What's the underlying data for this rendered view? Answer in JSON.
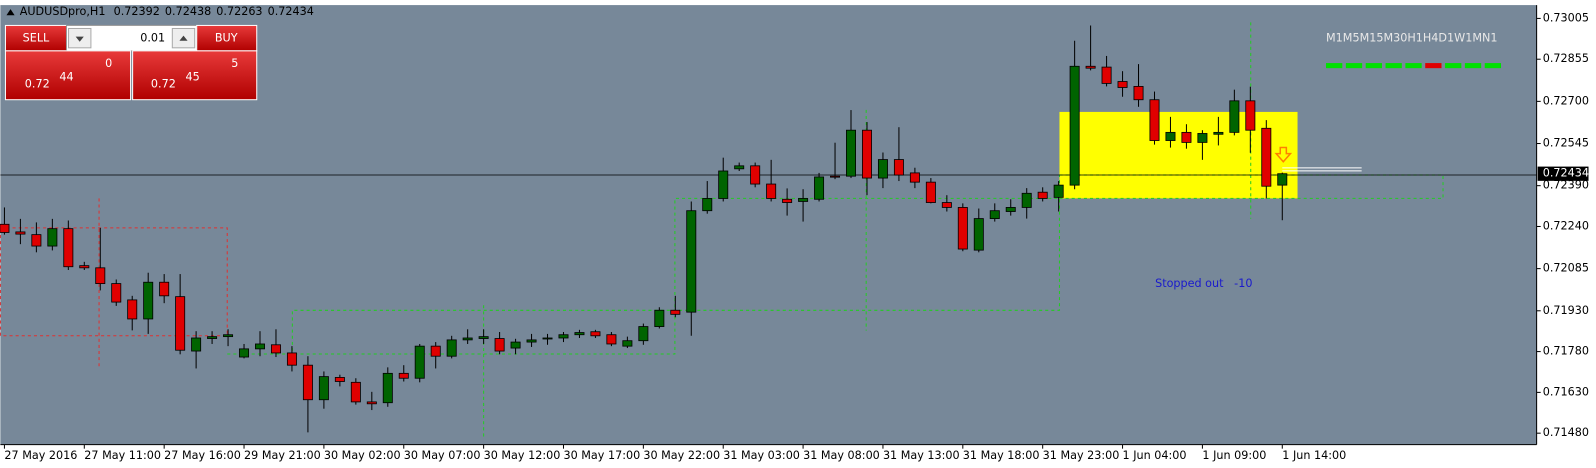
{
  "header": {
    "symbol": "AUDUSDpro,H1"
  },
  "trade_panel": {
    "sell_label": "SELL",
    "buy_label": "BUY",
    "lot": 0.01,
    "bid": {
      "prefix": 0.72,
      "pips": 44,
      "fraction": 0
    },
    "ask": {
      "prefix": 0.72,
      "pips": 45,
      "fraction": 5
    }
  },
  "timeframes": {
    "labels": [
      "M1",
      "M5",
      "M15",
      "M30",
      "H1",
      "H4",
      "D1",
      "W1",
      "MN1"
    ],
    "colors": [
      "#00e000",
      "#00e000",
      "#00e000",
      "#00e000",
      "#00e000",
      "#e00000",
      "#00e000",
      "#00e000",
      "#00e000"
    ]
  },
  "annotation": {
    "text": "Stopped out   -10",
    "color": "#1a1acd"
  },
  "chart_data": {
    "type": "candlestick",
    "up_color": "#006400",
    "down_color": "#e00000",
    "categories": [
      "27 May 2016",
      null,
      null,
      null,
      null,
      "27 May 11:00",
      null,
      null,
      null,
      null,
      "27 May 16:00",
      null,
      null,
      null,
      null,
      "29 May 21:00",
      null,
      null,
      null,
      null,
      "30 May 02:00",
      null,
      null,
      null,
      null,
      "30 May 07:00",
      null,
      null,
      null,
      null,
      "30 May 12:00",
      null,
      null,
      null,
      null,
      "30 May 17:00",
      null,
      null,
      null,
      null,
      "30 May 22:00",
      null,
      null,
      null,
      null,
      "31 May 03:00",
      null,
      null,
      null,
      null,
      "31 May 08:00",
      null,
      null,
      null,
      null,
      "31 May 13:00",
      null,
      null,
      null,
      null,
      "31 May 18:00",
      null,
      null,
      null,
      null,
      "31 May 23:00",
      null,
      null,
      null,
      null,
      "1 Jun 04:00",
      null,
      null,
      null,
      null,
      "1 Jun 09:00",
      null,
      null,
      null,
      null,
      "1 Jun 14:00"
    ],
    "open": [
      0.72248,
      0.7222,
      0.7221,
      0.72168,
      0.72232,
      0.72096,
      0.72088,
      0.7203,
      0.7197,
      0.719,
      0.72035,
      0.71982,
      0.71782,
      0.71828,
      0.71835,
      0.7176,
      0.7179,
      0.71805,
      0.71775,
      0.7173,
      0.71603,
      0.71685,
      0.71667,
      0.71595,
      0.71592,
      0.717,
      0.71682,
      0.718,
      0.71763,
      0.71823,
      0.71828,
      0.71828,
      0.71793,
      0.71815,
      0.71828,
      0.7183,
      0.71842,
      0.71853,
      0.71842,
      0.718,
      0.7182,
      0.71872,
      0.71932,
      0.71925,
      0.72298,
      0.72343,
      0.72452,
      0.72463,
      0.72396,
      0.7234,
      0.72332,
      0.7234,
      0.72425,
      0.72425,
      0.72594,
      0.72418,
      0.72486,
      0.72437,
      0.72403,
      0.72328,
      0.7231,
      0.72153,
      0.72269,
      0.72295,
      0.7231,
      0.72366,
      0.72347,
      0.72392,
      0.72829,
      0.72826,
      0.72773,
      0.72755,
      0.72706,
      0.72556,
      0.72586,
      0.72549,
      0.72579,
      0.72586,
      0.72702,
      0.72601,
      0.72392
    ],
    "high": [
      0.7231,
      0.72268,
      0.72255,
      0.72268,
      0.72262,
      0.7211,
      0.72235,
      0.72045,
      0.71985,
      0.7207,
      0.72065,
      0.72065,
      0.71855,
      0.71855,
      0.71862,
      0.71808,
      0.71855,
      0.71862,
      0.718,
      0.71763,
      0.71707,
      0.71695,
      0.71682,
      0.71632,
      0.71722,
      0.7173,
      0.71808,
      0.71815,
      0.71838,
      0.71862,
      0.71862,
      0.71852,
      0.71827,
      0.71845,
      0.71845,
      0.71852,
      0.7186,
      0.7186,
      0.71852,
      0.71835,
      0.71883,
      0.71943,
      0.71985,
      0.72332,
      0.72407,
      0.72493,
      0.72475,
      0.72475,
      0.72485,
      0.7238,
      0.72377,
      0.72437,
      0.72548,
      0.72668,
      0.72624,
      0.72512,
      0.72605,
      0.72456,
      0.72418,
      0.72355,
      0.72325,
      0.72306,
      0.72325,
      0.7234,
      0.72381,
      0.72384,
      0.72407,
      0.72923,
      0.72979,
      0.72867,
      0.72811,
      0.72837,
      0.72736,
      0.72643,
      0.72616,
      0.72594,
      0.72643,
      0.72743,
      0.72754,
      0.72631,
      0.72438
    ],
    "low": [
      0.7221,
      0.72175,
      0.72145,
      0.72152,
      0.7208,
      0.7208,
      0.72005,
      0.71948,
      0.71858,
      0.71845,
      0.71958,
      0.7177,
      0.71718,
      0.71808,
      0.718,
      0.71755,
      0.71763,
      0.7176,
      0.71707,
      0.71483,
      0.7157,
      0.71652,
      0.71585,
      0.71565,
      0.71577,
      0.7167,
      0.71667,
      0.71718,
      0.71755,
      0.71808,
      0.71808,
      0.7177,
      0.7177,
      0.71797,
      0.71805,
      0.71815,
      0.7183,
      0.7183,
      0.718,
      0.71793,
      0.71805,
      0.71865,
      0.71906,
      0.71838,
      0.72287,
      0.72332,
      0.72444,
      0.72384,
      0.72332,
      0.7228,
      0.72258,
      0.72332,
      0.72414,
      0.72418,
      0.72355,
      0.72381,
      0.72407,
      0.72381,
      0.72325,
      0.72295,
      0.72149,
      0.72145,
      0.72258,
      0.7228,
      0.72269,
      0.72332,
      0.72295,
      0.72377,
      0.72814,
      0.72755,
      0.72717,
      0.7268,
      0.72541,
      0.7253,
      0.72526,
      0.72485,
      0.72538,
      0.72575,
      0.72511,
      0.72343,
      0.72263
    ],
    "close": [
      0.72218,
      0.72212,
      0.72168,
      0.72232,
      0.72092,
      0.72088,
      0.7203,
      0.71962,
      0.719,
      0.72035,
      0.71985,
      0.71785,
      0.7183,
      0.71835,
      0.71842,
      0.7179,
      0.71808,
      0.71775,
      0.7173,
      0.71603,
      0.71688,
      0.7167,
      0.71595,
      0.71588,
      0.717,
      0.71682,
      0.718,
      0.71763,
      0.71823,
      0.7183,
      0.71835,
      0.71782,
      0.71815,
      0.71823,
      0.7183,
      0.71842,
      0.7185,
      0.71838,
      0.71808,
      0.7182,
      0.71872,
      0.71932,
      0.71917,
      0.72298,
      0.72343,
      0.72444,
      0.72463,
      0.72396,
      0.72343,
      0.72328,
      0.72343,
      0.72422,
      0.72422,
      0.72594,
      0.72418,
      0.72486,
      0.72429,
      0.72403,
      0.72328,
      0.7231,
      0.72157,
      0.72269,
      0.72298,
      0.7231,
      0.72362,
      0.72343,
      0.72392,
      0.72829,
      0.72822,
      0.72766,
      0.72751,
      0.72706,
      0.72556,
      0.72586,
      0.72549,
      0.72582,
      0.72586,
      0.72702,
      0.72594,
      0.72388,
      0.72434
    ],
    "ylim": [
      0.71438,
      0.73054
    ],
    "yticks": [
      0.73005,
      0.72855,
      {
        "value": 0.727,
        "label": "0.72700"
      },
      0.72545,
      {
        "value": 0.7239,
        "label": "0.72390"
      },
      {
        "value": 0.7224,
        "label": "0.72240"
      },
      0.72085,
      {
        "value": 0.7193,
        "label": "0.71930"
      },
      {
        "value": 0.7178,
        "label": "0.71780"
      },
      {
        "value": 0.7163,
        "label": "0.71630"
      },
      {
        "value": 0.7148,
        "label": "0.71480"
      }
    ]
  }
}
